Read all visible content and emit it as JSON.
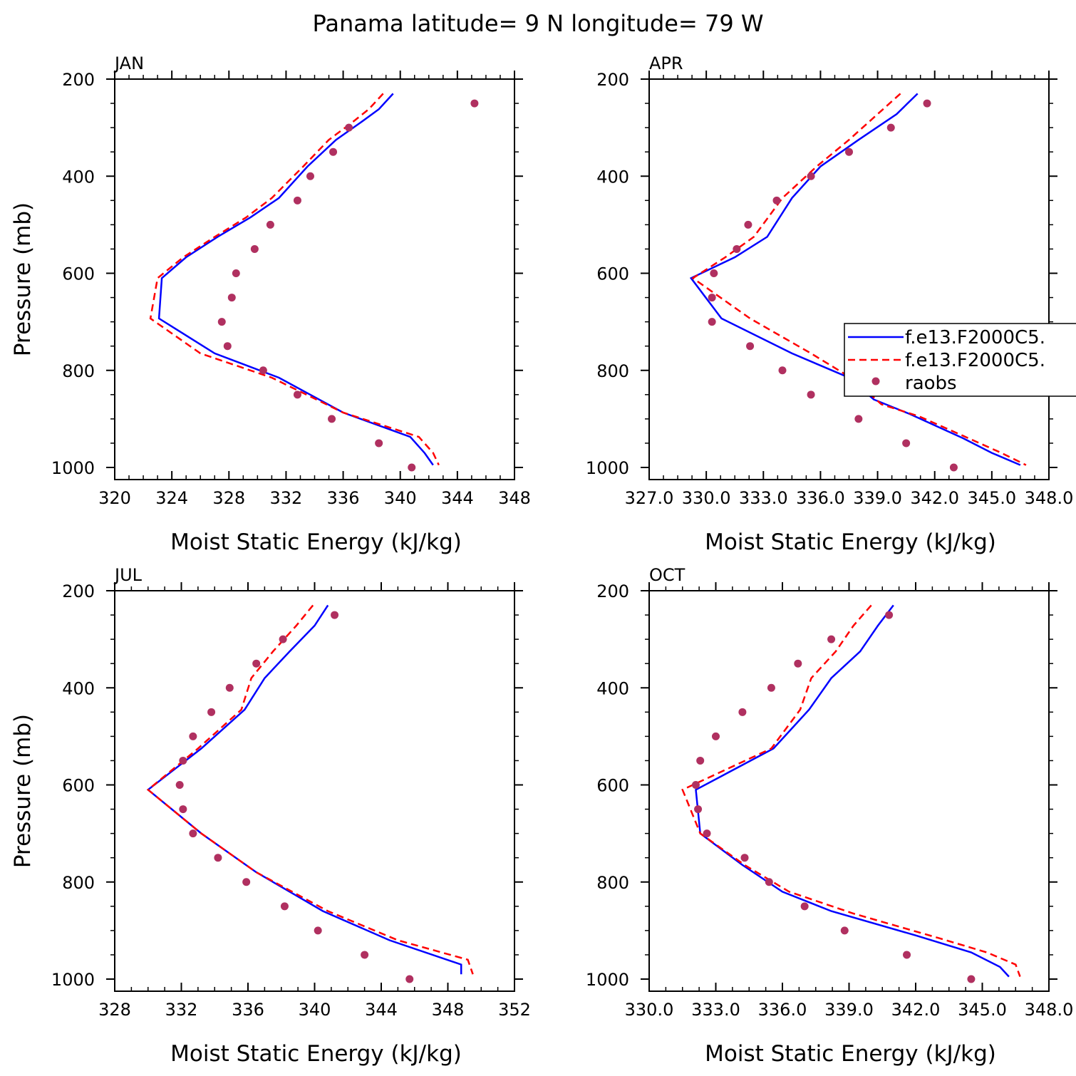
{
  "title": "Panama  latitude= 9 N longitude= 79 W",
  "legend": {
    "entries": [
      {
        "label": "f.e13.F2000C5.",
        "color": "#0000ff",
        "style": "solid"
      },
      {
        "label": "f.e13.F2000C5.",
        "color": "#ff0000",
        "style": "dashed"
      },
      {
        "label": "raobs",
        "color": "#b03060",
        "style": "dots"
      }
    ]
  },
  "chart_data": [
    {
      "type": "line",
      "panel": "JAN",
      "xlabel": "Moist Static Energy (kJ/kg)",
      "ylabel": "Pressure (mb)",
      "xlim": [
        320,
        348
      ],
      "ylim": [
        1000,
        200
      ],
      "x_ticks": [
        "320",
        "324",
        "328",
        "332",
        "336",
        "340",
        "344",
        "348"
      ],
      "y_ticks": [
        "200",
        "400",
        "600",
        "800",
        "1000"
      ],
      "series": [
        {
          "name": "f.e13.F2000C5.",
          "color": "#0000ff",
          "points": [
            [
              339.5,
              230
            ],
            [
              338.5,
              262
            ],
            [
              337.2,
              290
            ],
            [
              335.5,
              325
            ],
            [
              333.5,
              380
            ],
            [
              331.5,
              445
            ],
            [
              329.5,
              485
            ],
            [
              327.2,
              525
            ],
            [
              325.0,
              567
            ],
            [
              323.3,
              610
            ],
            [
              323.1,
              693
            ],
            [
              327.0,
              765
            ],
            [
              331.5,
              815
            ],
            [
              336.0,
              887
            ],
            [
              340.7,
              937
            ],
            [
              341.7,
              970
            ],
            [
              342.3,
              995
            ]
          ]
        },
        {
          "name": "f.e13.F2000C5.",
          "color": "#ff0000",
          "points": [
            [
              338.8,
              230
            ],
            [
              337.8,
              262
            ],
            [
              336.6,
              290
            ],
            [
              335.0,
              325
            ],
            [
              333.2,
              380
            ],
            [
              331.0,
              445
            ],
            [
              329.2,
              485
            ],
            [
              327.0,
              525
            ],
            [
              324.8,
              567
            ],
            [
              323.0,
              610
            ],
            [
              322.5,
              693
            ],
            [
              326.0,
              765
            ],
            [
              331.0,
              815
            ],
            [
              336.0,
              887
            ],
            [
              341.3,
              937
            ],
            [
              342.3,
              970
            ],
            [
              342.7,
              995
            ]
          ]
        }
      ],
      "obs": {
        "name": "raobs",
        "x": [
          345.2,
          336.4,
          335.3,
          333.7,
          332.8,
          330.9,
          329.8,
          328.5,
          328.2,
          327.5,
          327.9,
          330.4,
          332.8,
          335.2,
          338.5,
          340.8
        ],
        "y": [
          250,
          300,
          350,
          400,
          450,
          500,
          550,
          600,
          650,
          700,
          750,
          800,
          850,
          900,
          950,
          1000
        ]
      }
    },
    {
      "type": "line",
      "panel": "APR",
      "xlabel": "Moist Static Energy (kJ/kg)",
      "ylabel": "",
      "xlim": [
        327.0,
        348.0
      ],
      "ylim": [
        1000,
        200
      ],
      "x_ticks": [
        "327.0",
        "330.0",
        "333.0",
        "336.0",
        "339.0",
        "342.0",
        "345.0",
        "348.0"
      ],
      "y_ticks": [
        "200",
        "400",
        "600",
        "800",
        "1000"
      ],
      "series": [
        {
          "name": "f.e13.F2000C5.",
          "color": "#0000ff",
          "points": [
            [
              341.1,
              230
            ],
            [
              340.0,
              272
            ],
            [
              338.0,
              325
            ],
            [
              336.0,
              380
            ],
            [
              334.5,
              445
            ],
            [
              333.2,
              525
            ],
            [
              331.5,
              567
            ],
            [
              329.2,
              610
            ],
            [
              330.8,
              693
            ],
            [
              334.5,
              765
            ],
            [
              337.5,
              815
            ],
            [
              338.8,
              860
            ],
            [
              340.7,
              890
            ],
            [
              343.5,
              940
            ],
            [
              345.0,
              970
            ],
            [
              346.5,
              995
            ]
          ]
        },
        {
          "name": "f.e13.F2000C5.",
          "color": "#ff0000",
          "points": [
            [
              340.2,
              230
            ],
            [
              339.0,
              272
            ],
            [
              337.5,
              325
            ],
            [
              335.8,
              380
            ],
            [
              334.0,
              445
            ],
            [
              332.5,
              525
            ],
            [
              331.0,
              567
            ],
            [
              329.3,
              610
            ],
            [
              332.3,
              693
            ],
            [
              335.5,
              765
            ],
            [
              337.8,
              820
            ],
            [
              339.2,
              870
            ],
            [
              341.2,
              895
            ],
            [
              343.5,
              935
            ],
            [
              345.5,
              970
            ],
            [
              346.8,
              995
            ]
          ]
        }
      ],
      "obs": {
        "name": "raobs",
        "x": [
          341.6,
          339.7,
          337.5,
          335.5,
          333.7,
          332.2,
          331.6,
          330.4,
          330.3,
          330.3,
          332.3,
          334.0,
          335.5,
          338.0,
          340.5,
          343.0
        ],
        "y": [
          250,
          300,
          350,
          400,
          450,
          500,
          550,
          600,
          650,
          700,
          750,
          800,
          850,
          900,
          950,
          1000
        ]
      }
    },
    {
      "type": "line",
      "panel": "JUL",
      "xlabel": "Moist Static Energy (kJ/kg)",
      "ylabel": "Pressure (mb)",
      "xlim": [
        328,
        352
      ],
      "ylim": [
        1000,
        200
      ],
      "x_ticks": [
        "328",
        "332",
        "336",
        "340",
        "344",
        "348",
        "352"
      ],
      "y_ticks": [
        "200",
        "400",
        "600",
        "800",
        "1000"
      ],
      "series": [
        {
          "name": "f.e13.F2000C5.",
          "color": "#0000ff",
          "points": [
            [
              340.8,
              230
            ],
            [
              340.0,
              272
            ],
            [
              338.5,
              325
            ],
            [
              337.0,
              380
            ],
            [
              335.8,
              445
            ],
            [
              333.2,
              525
            ],
            [
              330.0,
              610
            ],
            [
              333.2,
              700
            ],
            [
              336.5,
              780
            ],
            [
              340.5,
              860
            ],
            [
              344.5,
              920
            ],
            [
              348.8,
              970
            ],
            [
              348.8,
              990
            ]
          ]
        },
        {
          "name": "f.e13.F2000C5.",
          "color": "#ff0000",
          "points": [
            [
              339.9,
              230
            ],
            [
              338.9,
              272
            ],
            [
              337.5,
              325
            ],
            [
              336.2,
              380
            ],
            [
              335.6,
              445
            ],
            [
              333.0,
              525
            ],
            [
              330.0,
              610
            ],
            [
              333.2,
              700
            ],
            [
              336.5,
              780
            ],
            [
              340.8,
              860
            ],
            [
              345.0,
              920
            ],
            [
              349.2,
              960
            ],
            [
              349.5,
              990
            ]
          ]
        }
      ],
      "obs": {
        "name": "raobs",
        "x": [
          341.2,
          338.1,
          336.5,
          334.9,
          333.8,
          332.7,
          332.1,
          331.9,
          332.1,
          332.7,
          334.2,
          335.9,
          338.2,
          340.2,
          343.0,
          345.7
        ],
        "y": [
          250,
          300,
          350,
          400,
          450,
          500,
          550,
          600,
          650,
          700,
          750,
          800,
          850,
          900,
          950,
          1000
        ]
      }
    },
    {
      "type": "line",
      "panel": "OCT",
      "xlabel": "Moist Static Energy (kJ/kg)",
      "ylabel": "",
      "xlim": [
        330.0,
        348.0
      ],
      "ylim": [
        1000,
        200
      ],
      "x_ticks": [
        "330.0",
        "333.0",
        "336.0",
        "339.0",
        "342.0",
        "345.0",
        "348.0"
      ],
      "y_ticks": [
        "200",
        "400",
        "600",
        "800",
        "1000"
      ],
      "series": [
        {
          "name": "f.e13.F2000C5.",
          "color": "#0000ff",
          "points": [
            [
              341.0,
              230
            ],
            [
              340.3,
              272
            ],
            [
              339.5,
              325
            ],
            [
              338.2,
              380
            ],
            [
              337.2,
              445
            ],
            [
              335.6,
              525
            ],
            [
              332.1,
              610
            ],
            [
              332.3,
              700
            ],
            [
              334.2,
              765
            ],
            [
              336.0,
              820
            ],
            [
              338.2,
              860
            ],
            [
              342.0,
              910
            ],
            [
              344.5,
              945
            ],
            [
              345.8,
              975
            ],
            [
              346.2,
              995
            ]
          ]
        },
        {
          "name": "f.e13.F2000C5.",
          "color": "#ff0000",
          "points": [
            [
              340.0,
              230
            ],
            [
              339.2,
              272
            ],
            [
              338.4,
              325
            ],
            [
              337.3,
              380
            ],
            [
              336.8,
              445
            ],
            [
              335.5,
              525
            ],
            [
              331.5,
              610
            ],
            [
              332.3,
              700
            ],
            [
              334.3,
              765
            ],
            [
              336.3,
              820
            ],
            [
              339.2,
              865
            ],
            [
              343.0,
              915
            ],
            [
              345.2,
              945
            ],
            [
              346.5,
              970
            ],
            [
              346.7,
              995
            ]
          ]
        }
      ],
      "obs": {
        "name": "raobs",
        "x": [
          340.8,
          338.2,
          336.7,
          335.5,
          334.2,
          333.0,
          332.3,
          332.1,
          332.2,
          332.6,
          334.3,
          335.4,
          337.0,
          338.8,
          341.6,
          344.5
        ],
        "y": [
          250,
          300,
          350,
          400,
          450,
          500,
          550,
          600,
          650,
          700,
          750,
          800,
          850,
          900,
          950,
          1000
        ]
      }
    }
  ]
}
